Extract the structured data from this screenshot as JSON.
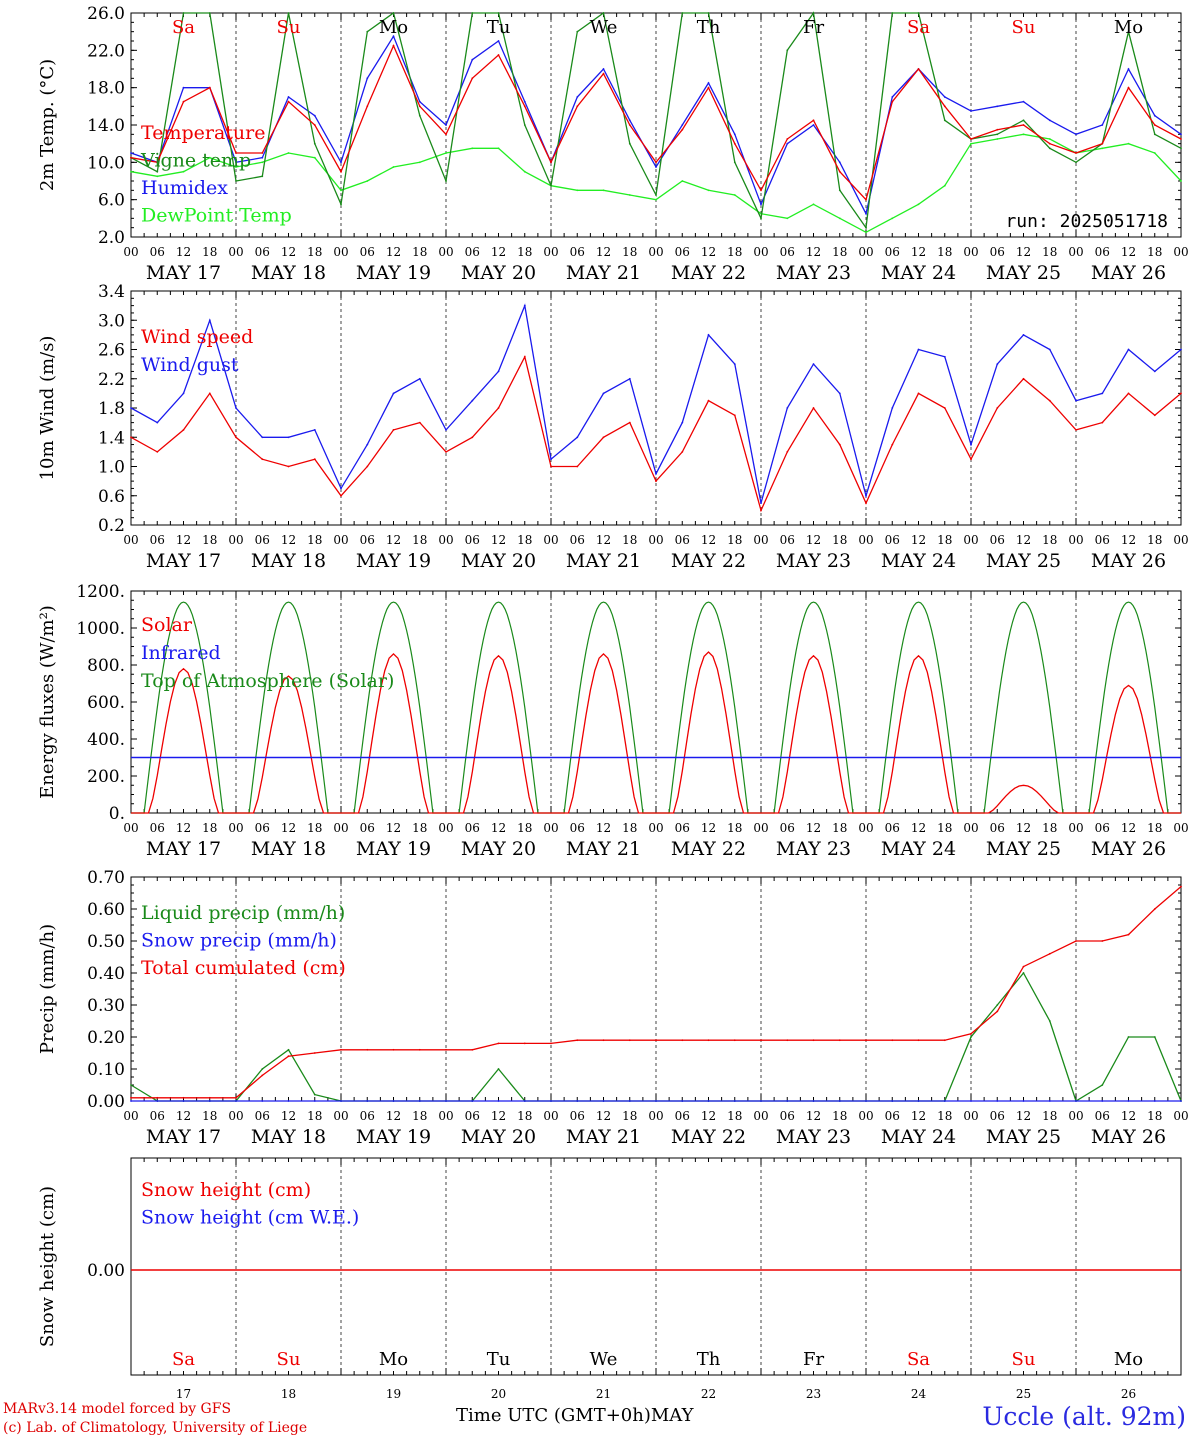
{
  "chart_data": [
    {
      "type": "line",
      "ylabel": "2m Temp. (°C)",
      "ylim": [
        2,
        26
      ],
      "yticks": [
        "26.0",
        "22.0",
        "18.0",
        "14.0",
        "10.0",
        "6.0",
        "2.0"
      ],
      "x_hours": [
        0,
        6,
        12,
        18,
        24,
        30,
        36,
        42,
        48,
        54,
        60,
        66,
        72,
        78,
        84,
        90,
        96,
        102,
        108,
        114,
        120,
        126,
        132,
        138,
        144,
        150,
        156,
        162,
        168,
        174,
        180,
        186,
        192,
        198,
        204,
        210,
        216,
        222,
        228,
        234,
        240
      ],
      "series": [
        {
          "name": "Temperature",
          "color": "#ee0000",
          "values": [
            10.5,
            10.0,
            16.5,
            18.0,
            11.0,
            11.0,
            16.5,
            14.0,
            9.0,
            16.0,
            22.5,
            16.0,
            13.0,
            19.0,
            21.5,
            16.0,
            10.0,
            16.0,
            19.5,
            14.0,
            10.0,
            13.5,
            18.0,
            12.0,
            7.0,
            12.5,
            14.5,
            9.0,
            6.0,
            16.5,
            20.0,
            16.0,
            12.5,
            13.5,
            14.0,
            12.0,
            11.0,
            12.0,
            18.0,
            14.0,
            12.5
          ]
        },
        {
          "name": "Vigne temp",
          "color": "#1a8a1a",
          "values": [
            10.5,
            9.0,
            26.0,
            26.0,
            8.0,
            8.5,
            26.0,
            12.0,
            5.5,
            24.0,
            26.0,
            15.0,
            8.0,
            26.0,
            26.0,
            14.0,
            7.5,
            24.0,
            26.0,
            12.0,
            6.5,
            26.0,
            26.0,
            10.0,
            4.0,
            22.0,
            26.0,
            7.0,
            3.0,
            26.0,
            26.0,
            14.5,
            12.5,
            13.0,
            14.5,
            11.5,
            10.0,
            12.0,
            24.0,
            13.0,
            11.5
          ]
        },
        {
          "name": "Humidex",
          "color": "#1a1aee",
          "values": [
            11.0,
            10.0,
            18.0,
            18.0,
            10.0,
            10.5,
            17.0,
            15.0,
            10.0,
            19.0,
            23.5,
            16.5,
            14.0,
            21.0,
            23.0,
            16.5,
            10.0,
            17.0,
            20.0,
            14.5,
            9.5,
            14.0,
            18.5,
            13.0,
            5.5,
            12.0,
            14.0,
            10.0,
            4.5,
            17.0,
            20.0,
            17.0,
            15.5,
            16.0,
            16.5,
            14.5,
            13.0,
            14.0,
            20.0,
            15.0,
            13.0
          ]
        },
        {
          "name": "DewPoint Temp",
          "color": "#22ee22",
          "values": [
            9.0,
            8.5,
            9.0,
            10.5,
            9.5,
            10.0,
            11.0,
            10.5,
            7.0,
            8.0,
            9.5,
            10.0,
            11.0,
            11.5,
            11.5,
            9.0,
            7.5,
            7.0,
            7.0,
            6.5,
            6.0,
            8.0,
            7.0,
            6.5,
            4.5,
            4.0,
            5.5,
            4.0,
            2.5,
            4.0,
            5.5,
            7.5,
            12.0,
            12.5,
            13.0,
            12.5,
            11.0,
            11.5,
            12.0,
            11.0,
            8.0
          ]
        }
      ],
      "annotation": "run: 2025051718"
    },
    {
      "type": "line",
      "ylabel": "10m Wind (m/s)",
      "ylim": [
        0.2,
        3.4
      ],
      "yticks": [
        "3.4",
        "3.0",
        "2.6",
        "2.2",
        "1.8",
        "1.4",
        "1.0",
        "0.6",
        "0.2"
      ],
      "x_hours": [
        0,
        6,
        12,
        18,
        24,
        30,
        36,
        42,
        48,
        54,
        60,
        66,
        72,
        78,
        84,
        90,
        96,
        102,
        108,
        114,
        120,
        126,
        132,
        138,
        144,
        150,
        156,
        162,
        168,
        174,
        180,
        186,
        192,
        198,
        204,
        210,
        216,
        222,
        228,
        234,
        240
      ],
      "series": [
        {
          "name": "Wind speed",
          "color": "#ee0000",
          "values": [
            1.4,
            1.2,
            1.5,
            2.0,
            1.4,
            1.1,
            1.0,
            1.1,
            0.6,
            1.0,
            1.5,
            1.6,
            1.2,
            1.4,
            1.8,
            2.5,
            1.0,
            1.0,
            1.4,
            1.6,
            0.8,
            1.2,
            1.9,
            1.7,
            0.4,
            1.2,
            1.8,
            1.3,
            0.5,
            1.3,
            2.0,
            1.8,
            1.1,
            1.8,
            2.2,
            1.9,
            1.5,
            1.6,
            2.0,
            1.7,
            2.0
          ]
        },
        {
          "name": "Wind gust",
          "color": "#1a1aee",
          "values": [
            1.8,
            1.6,
            2.0,
            3.0,
            1.8,
            1.4,
            1.4,
            1.5,
            0.7,
            1.3,
            2.0,
            2.2,
            1.5,
            1.9,
            2.3,
            3.2,
            1.1,
            1.4,
            2.0,
            2.2,
            0.9,
            1.6,
            2.8,
            2.4,
            0.5,
            1.8,
            2.4,
            2.0,
            0.6,
            1.8,
            2.6,
            2.5,
            1.3,
            2.4,
            2.8,
            2.6,
            1.9,
            2.0,
            2.6,
            2.3,
            2.6
          ]
        }
      ]
    },
    {
      "type": "line",
      "ylabel": "Energy fluxes (W/m²)",
      "ylim": [
        0,
        1200
      ],
      "yticks": [
        "1200.",
        "1000.",
        "800.",
        "600.",
        "400.",
        "200.",
        "0."
      ],
      "solar_peaks": [
        780,
        740,
        860,
        850,
        860,
        870,
        850,
        850,
        150,
        690
      ],
      "toa_peak": 1140,
      "infrared_level": 300,
      "series": [
        {
          "name": "Solar",
          "color": "#ee0000"
        },
        {
          "name": "Infrared",
          "color": "#1a1aee"
        },
        {
          "name": "Top of Atmosphere (Solar)",
          "color": "#1a8a1a"
        }
      ]
    },
    {
      "type": "line",
      "ylabel": "Precip (mm/h)",
      "ylim": [
        0,
        0.7
      ],
      "yticks": [
        "0.70",
        "0.60",
        "0.50",
        "0.40",
        "0.30",
        "0.20",
        "0.10",
        "0.00"
      ],
      "x_hours": [
        0,
        6,
        12,
        18,
        24,
        30,
        36,
        42,
        48,
        54,
        60,
        66,
        72,
        78,
        84,
        90,
        96,
        102,
        108,
        114,
        120,
        126,
        132,
        138,
        144,
        150,
        156,
        162,
        168,
        174,
        180,
        186,
        192,
        198,
        204,
        210,
        216,
        222,
        228,
        234,
        240
      ],
      "series": [
        {
          "name": "Liquid precip (mm/h)",
          "color": "#1a8a1a",
          "values": [
            0.05,
            0,
            0,
            0,
            0,
            0.1,
            0.16,
            0.02,
            0,
            0,
            0,
            0,
            0,
            0,
            0.1,
            0,
            0,
            0,
            0,
            0,
            0,
            0,
            0,
            0,
            0,
            0,
            0,
            0,
            0,
            0,
            0,
            0,
            0.2,
            0.3,
            0.4,
            0.25,
            0,
            0.05,
            0.2,
            0.2,
            0
          ]
        },
        {
          "name": "Snow precip (mm/h)",
          "color": "#1a1aee",
          "values": [
            0,
            0,
            0,
            0,
            0,
            0,
            0,
            0,
            0,
            0,
            0,
            0,
            0,
            0,
            0,
            0,
            0,
            0,
            0,
            0,
            0,
            0,
            0,
            0,
            0,
            0,
            0,
            0,
            0,
            0,
            0,
            0,
            0,
            0,
            0,
            0,
            0,
            0,
            0,
            0,
            0
          ]
        },
        {
          "name": "Total cumulated (cm)",
          "color": "#ee0000",
          "values": [
            0.01,
            0.01,
            0.01,
            0.01,
            0.01,
            0.08,
            0.14,
            0.15,
            0.16,
            0.16,
            0.16,
            0.16,
            0.16,
            0.16,
            0.18,
            0.18,
            0.18,
            0.19,
            0.19,
            0.19,
            0.19,
            0.19,
            0.19,
            0.19,
            0.19,
            0.19,
            0.19,
            0.19,
            0.19,
            0.19,
            0.19,
            0.19,
            0.21,
            0.28,
            0.42,
            0.46,
            0.5,
            0.5,
            0.52,
            0.6,
            0.67
          ]
        }
      ]
    },
    {
      "type": "line",
      "ylabel": "Snow height (cm)",
      "ytick": "0.00",
      "series": [
        {
          "name": "Snow height (cm)",
          "color": "#ee0000",
          "values": [
            0,
            0
          ]
        },
        {
          "name": "Snow height (cm W.E.)",
          "color": "#1a1aee",
          "values": [
            0,
            0
          ]
        }
      ]
    }
  ],
  "axis": {
    "hour_labels": [
      "00",
      "06",
      "12",
      "18"
    ],
    "hour_end_label": "00",
    "date_labels": [
      "MAY 17",
      "MAY 18",
      "MAY 19",
      "MAY 20",
      "MAY 21",
      "MAY 22",
      "MAY 23",
      "MAY 24",
      "MAY 25",
      "MAY 26"
    ],
    "weekdays": [
      "Sa",
      "Su",
      "Mo",
      "Tu",
      "We",
      "Th",
      "Fr",
      "Sa",
      "Su",
      "Mo"
    ],
    "weekend": [
      true,
      true,
      false,
      false,
      false,
      false,
      false,
      true,
      true,
      false
    ],
    "day_numbers": [
      "17",
      "18",
      "19",
      "20",
      "21",
      "22",
      "23",
      "24",
      "25",
      "26"
    ],
    "weekend_color": "#ee0000"
  },
  "footer": {
    "model": "MARv3.14 model forced by GFS",
    "credit": "(c) Lab. of Climatology, University of Liege",
    "time_label": "Time UTC (GMT+0h)",
    "month": "MAY",
    "station": "Uccle (alt. 92m)"
  }
}
